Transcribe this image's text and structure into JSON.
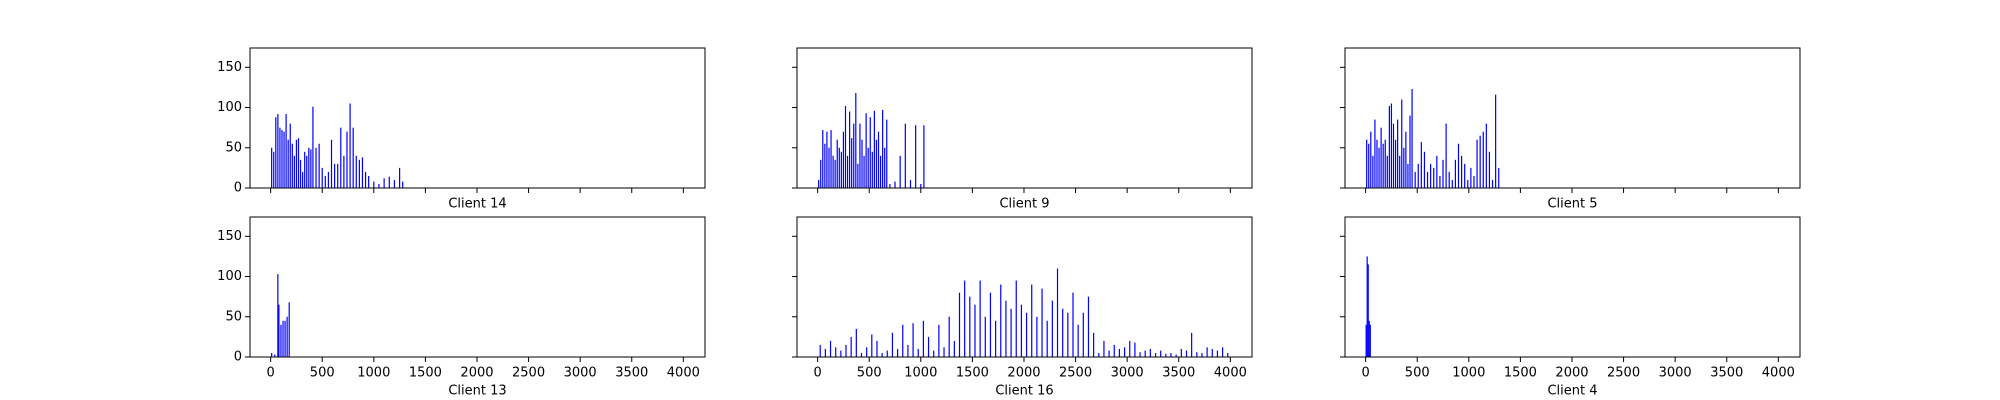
{
  "chart_data": [
    {
      "type": "bar",
      "xlabel": "Client 14",
      "color": "#0000ff",
      "x": [
        10,
        30,
        50,
        70,
        90,
        110,
        130,
        150,
        170,
        190,
        210,
        230,
        250,
        270,
        290,
        310,
        330,
        350,
        370,
        390,
        410,
        440,
        470,
        500,
        530,
        560,
        590,
        620,
        650,
        680,
        710,
        740,
        770,
        800,
        830,
        860,
        890,
        920,
        950,
        1000,
        1050,
        1100,
        1150,
        1200,
        1250,
        1280
      ],
      "values": [
        50,
        45,
        88,
        92,
        75,
        72,
        70,
        92,
        60,
        80,
        55,
        40,
        60,
        62,
        35,
        20,
        45,
        40,
        50,
        48,
        101,
        50,
        55,
        25,
        15,
        20,
        60,
        30,
        30,
        75,
        40,
        70,
        105,
        75,
        40,
        35,
        38,
        20,
        15,
        8,
        5,
        12,
        14,
        10,
        25,
        8
      ],
      "xlim": [
        -200,
        4210
      ],
      "ylim": [
        0,
        174
      ],
      "xticks": [
        0,
        500,
        1000,
        1500,
        2000,
        2500,
        3000,
        3500,
        4000
      ],
      "yticks": [
        0,
        50,
        100,
        150
      ],
      "xtick_labels": false,
      "ytick_labels": true
    },
    {
      "type": "bar",
      "xlabel": "Client 9",
      "color": "#0000ff",
      "x": [
        10,
        30,
        50,
        70,
        90,
        110,
        130,
        150,
        170,
        190,
        210,
        230,
        250,
        270,
        290,
        310,
        330,
        350,
        370,
        390,
        410,
        430,
        450,
        470,
        490,
        510,
        530,
        550,
        570,
        590,
        610,
        630,
        650,
        670,
        700,
        750,
        800,
        850,
        900,
        950,
        1000,
        1030
      ],
      "values": [
        10,
        35,
        72,
        55,
        70,
        50,
        72,
        40,
        35,
        60,
        50,
        45,
        70,
        102,
        40,
        95,
        62,
        80,
        118,
        30,
        80,
        60,
        40,
        93,
        50,
        88,
        45,
        96,
        60,
        70,
        40,
        97,
        50,
        85,
        5,
        8,
        40,
        80,
        10,
        78,
        5,
        78
      ],
      "xlim": [
        -200,
        4210
      ],
      "ylim": [
        0,
        174
      ],
      "xticks": [
        0,
        500,
        1000,
        1500,
        2000,
        2500,
        3000,
        3500,
        4000
      ],
      "yticks": [
        0,
        50,
        100,
        150
      ],
      "xtick_labels": false,
      "ytick_labels": false
    },
    {
      "type": "bar",
      "xlabel": "Client 5",
      "color": "#0000ff",
      "x": [
        10,
        30,
        50,
        70,
        90,
        110,
        130,
        150,
        170,
        190,
        210,
        230,
        250,
        270,
        290,
        310,
        330,
        350,
        370,
        390,
        410,
        430,
        450,
        480,
        510,
        540,
        570,
        600,
        630,
        660,
        690,
        720,
        750,
        780,
        810,
        840,
        870,
        900,
        930,
        960,
        990,
        1020,
        1050,
        1080,
        1110,
        1140,
        1170,
        1200,
        1230,
        1260,
        1290
      ],
      "values": [
        60,
        55,
        70,
        40,
        85,
        60,
        50,
        75,
        55,
        60,
        40,
        102,
        105,
        80,
        60,
        85,
        40,
        110,
        50,
        70,
        30,
        90,
        123,
        20,
        30,
        57,
        45,
        20,
        30,
        25,
        40,
        15,
        35,
        80,
        20,
        10,
        35,
        55,
        40,
        30,
        10,
        25,
        15,
        60,
        65,
        70,
        80,
        45,
        10,
        116,
        25
      ],
      "xlim": [
        -200,
        4210
      ],
      "ylim": [
        0,
        174
      ],
      "xticks": [
        0,
        500,
        1000,
        1500,
        2000,
        2500,
        3000,
        3500,
        4000
      ],
      "yticks": [
        0,
        50,
        100,
        150
      ],
      "xtick_labels": false,
      "ytick_labels": false
    },
    {
      "type": "bar",
      "xlabel": "Client 13",
      "color": "#0000ff",
      "x": [
        10,
        40,
        70,
        80,
        100,
        120,
        140,
        160,
        180
      ],
      "values": [
        5,
        3,
        103,
        65,
        40,
        45,
        45,
        50,
        68
      ],
      "xlim": [
        -200,
        4210
      ],
      "ylim": [
        0,
        174
      ],
      "xticks": [
        0,
        500,
        1000,
        1500,
        2000,
        2500,
        3000,
        3500,
        4000
      ],
      "yticks": [
        0,
        50,
        100,
        150
      ],
      "xtick_labels": true,
      "ytick_labels": true
    },
    {
      "type": "bar",
      "xlabel": "Client 16",
      "color": "#0000ff",
      "x": [
        25,
        75,
        125,
        175,
        225,
        275,
        325,
        375,
        425,
        475,
        525,
        575,
        625,
        675,
        725,
        775,
        825,
        875,
        925,
        975,
        1025,
        1075,
        1125,
        1175,
        1225,
        1275,
        1325,
        1375,
        1425,
        1475,
        1525,
        1575,
        1625,
        1675,
        1725,
        1775,
        1825,
        1875,
        1925,
        1975,
        2025,
        2075,
        2125,
        2175,
        2225,
        2275,
        2325,
        2375,
        2425,
        2475,
        2525,
        2575,
        2625,
        2675,
        2725,
        2775,
        2825,
        2875,
        2925,
        2975,
        3025,
        3075,
        3125,
        3175,
        3225,
        3275,
        3325,
        3375,
        3425,
        3475,
        3525,
        3575,
        3625,
        3675,
        3725,
        3775,
        3825,
        3875,
        3925,
        3975
      ],
      "values": [
        15,
        10,
        20,
        12,
        8,
        15,
        25,
        35,
        5,
        12,
        28,
        20,
        5,
        8,
        30,
        10,
        40,
        15,
        42,
        10,
        45,
        25,
        8,
        40,
        12,
        50,
        20,
        80,
        95,
        75,
        65,
        95,
        50,
        80,
        45,
        90,
        70,
        60,
        95,
        65,
        55,
        90,
        50,
        85,
        45,
        70,
        110,
        60,
        55,
        80,
        40,
        55,
        75,
        30,
        5,
        20,
        8,
        15,
        10,
        12,
        20,
        18,
        6,
        8,
        10,
        5,
        8,
        4,
        5,
        3,
        10,
        8,
        30,
        6,
        5,
        12,
        10,
        8,
        12,
        5
      ],
      "xlim": [
        -200,
        4210
      ],
      "ylim": [
        0,
        174
      ],
      "xticks": [
        0,
        500,
        1000,
        1500,
        2000,
        2500,
        3000,
        3500,
        4000
      ],
      "yticks": [
        0,
        50,
        100,
        150
      ],
      "xtick_labels": true,
      "ytick_labels": false
    },
    {
      "type": "bar",
      "xlabel": "Client 4",
      "color": "#0000ff",
      "x": [
        5,
        15,
        25,
        35,
        45
      ],
      "values": [
        40,
        125,
        115,
        45,
        40
      ],
      "xlim": [
        -200,
        4210
      ],
      "ylim": [
        0,
        174
      ],
      "xticks": [
        0,
        500,
        1000,
        1500,
        2000,
        2500,
        3000,
        3500,
        4000
      ],
      "yticks": [
        0,
        50,
        100,
        150
      ],
      "xtick_labels": true,
      "ytick_labels": false
    }
  ]
}
